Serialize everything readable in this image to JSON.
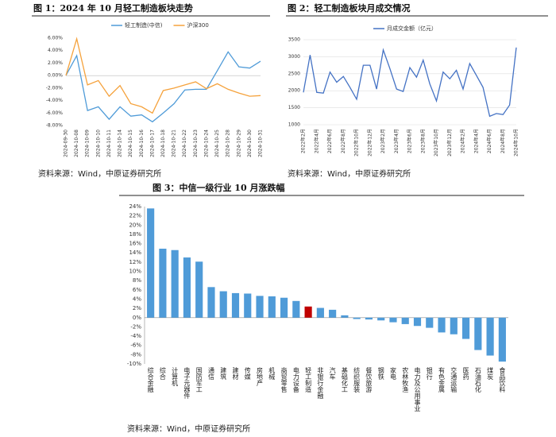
{
  "chart_data": [
    {
      "type": "line",
      "title": "图 1：2024 年 10 月轻工制造板块走势",
      "categories": [
        "2024-09-30",
        "2024-10-08",
        "2024-10-09",
        "2024-10-10",
        "2024-10-11",
        "2024-10-14",
        "2024-10-15",
        "2024-10-16",
        "2024-10-17",
        "2024-10-18",
        "2024-10-21",
        "2024-10-22",
        "2024-10-23",
        "2024-10-24",
        "2024-10-25",
        "2024-10-28",
        "2024-10-29",
        "2024-10-30",
        "2024-10-31"
      ],
      "series": [
        {
          "name": "轻工制造(中信)",
          "color": "#4f9bd8",
          "values": [
            0,
            3.2,
            -5.6,
            -5.0,
            -7.0,
            -5.0,
            -6.5,
            -6.3,
            -7.4,
            -6.0,
            -4.5,
            -2.3,
            -2.2,
            -2.2,
            0.8,
            3.8,
            1.4,
            1.2,
            2.3
          ]
        },
        {
          "name": "沪深300",
          "color": "#f5a23c",
          "values": [
            0,
            5.9,
            -1.5,
            -0.8,
            -3.3,
            -1.6,
            -4.5,
            -5.0,
            -6.0,
            -2.4,
            -2.0,
            -1.5,
            -1.0,
            -2.1,
            -1.3,
            -2.2,
            -2.8,
            -3.3,
            -3.2
          ]
        }
      ],
      "ylim": [
        -8,
        6
      ],
      "yticks": [
        {
          "value": 6,
          "label": "6.00%"
        },
        {
          "value": 4,
          "label": "4.00%"
        },
        {
          "value": 2,
          "label": "2.00%"
        },
        {
          "value": 0,
          "label": "0.00%"
        },
        {
          "value": -2,
          "label": "-2.00%"
        },
        {
          "value": -4,
          "label": "-4.00%"
        },
        {
          "value": -6,
          "label": "-6.00%"
        },
        {
          "value": -8,
          "label": "-8.00%"
        }
      ],
      "grid": false,
      "source": "资料来源：Wind，中原证券研究所"
    },
    {
      "type": "line",
      "title": "图 2：轻工制造板块月成交情况",
      "categories": [
        "2022年2月",
        null,
        "2022年4月",
        null,
        "2022年6月",
        null,
        "2022年8月",
        null,
        "2022年10月",
        null,
        "2022年12月",
        null,
        "2023年2月",
        null,
        "2023年4月",
        null,
        "2023年6月",
        null,
        "2023年8月",
        null,
        "2023年10月",
        null,
        "2023年12月",
        null,
        "2024年2月",
        null,
        "2024年4月",
        null,
        "2024年6月",
        null,
        "2024年8月",
        null,
        "2024年10月"
      ],
      "series": [
        {
          "name": "月成交金额（亿元）",
          "color": "#4472c4",
          "values": [
            1950,
            3050,
            1950,
            1930,
            2550,
            2250,
            2420,
            2100,
            1750,
            2750,
            2750,
            2050,
            3200,
            2650,
            2050,
            1980,
            2680,
            2400,
            2900,
            2200,
            1700,
            2550,
            2350,
            2600,
            2050,
            2800,
            2450,
            2100,
            1250,
            1330,
            1300,
            1580,
            3270
          ]
        }
      ],
      "ylim": [
        1000,
        3500
      ],
      "yticks": [
        1000,
        1500,
        2000,
        2500,
        3000,
        3500
      ],
      "grid": true,
      "source": "资料来源：Wind，中原证券研究所"
    },
    {
      "type": "bar",
      "title": "图 3：中信一级行业 10 月涨跌幅",
      "categories": [
        "综合金融",
        "综合",
        "计算机",
        "电子元器件",
        "国防军工",
        "通信",
        "建筑",
        "建材",
        "传媒",
        "房地产",
        "机械",
        "商贸零售",
        "电力设备",
        "轻工制造",
        "非银行金融",
        "汽车",
        "基础化工",
        "纺织服装",
        "餐饮旅游",
        "钢铁",
        "家电",
        "农林牧渔",
        "电力及公用事业",
        "银行",
        "有色金属",
        "交通运输",
        "医药",
        "石油石化",
        "煤炭",
        "食品饮料"
      ],
      "values": [
        23.6,
        14.9,
        14.6,
        13.0,
        12.1,
        6.6,
        5.7,
        5.3,
        5.2,
        4.7,
        4.6,
        4.3,
        3.6,
        2.4,
        2.1,
        1.7,
        0.5,
        -0.3,
        -0.4,
        -0.6,
        -1.0,
        -1.4,
        -1.8,
        -2.2,
        -3.2,
        -3.6,
        -4.6,
        -7.0,
        -8.2,
        -9.5
      ],
      "colors": [
        "#4f9bd8",
        "#4f9bd8",
        "#4f9bd8",
        "#4f9bd8",
        "#4f9bd8",
        "#4f9bd8",
        "#4f9bd8",
        "#4f9bd8",
        "#4f9bd8",
        "#4f9bd8",
        "#4f9bd8",
        "#4f9bd8",
        "#4f9bd8",
        "#c00000",
        "#4f9bd8",
        "#4f9bd8",
        "#4f9bd8",
        "#4f9bd8",
        "#4f9bd8",
        "#4f9bd8",
        "#4f9bd8",
        "#4f9bd8",
        "#4f9bd8",
        "#4f9bd8",
        "#4f9bd8",
        "#4f9bd8",
        "#4f9bd8",
        "#4f9bd8",
        "#4f9bd8",
        "#4f9bd8"
      ],
      "ylim": [
        -10,
        24
      ],
      "yticks": [
        {
          "value": 24,
          "label": "24%"
        },
        {
          "value": 22,
          "label": "22%"
        },
        {
          "value": 20,
          "label": "20%"
        },
        {
          "value": 18,
          "label": "18%"
        },
        {
          "value": 16,
          "label": "16%"
        },
        {
          "value": 14,
          "label": "14%"
        },
        {
          "value": 12,
          "label": "12%"
        },
        {
          "value": 10,
          "label": "10%"
        },
        {
          "value": 8,
          "label": "8%"
        },
        {
          "value": 6,
          "label": "6%"
        },
        {
          "value": 4,
          "label": "4%"
        },
        {
          "value": 2,
          "label": "2%"
        },
        {
          "value": 0,
          "label": "0%"
        },
        {
          "value": -2,
          "label": "-2%"
        },
        {
          "value": -4,
          "label": "-4%"
        },
        {
          "value": -6,
          "label": "-6%"
        },
        {
          "value": -8,
          "label": "-8%"
        },
        {
          "value": -10,
          "label": "-10%"
        }
      ],
      "grid": false,
      "source": "资料来源：Wind，中原证券研究所"
    }
  ]
}
